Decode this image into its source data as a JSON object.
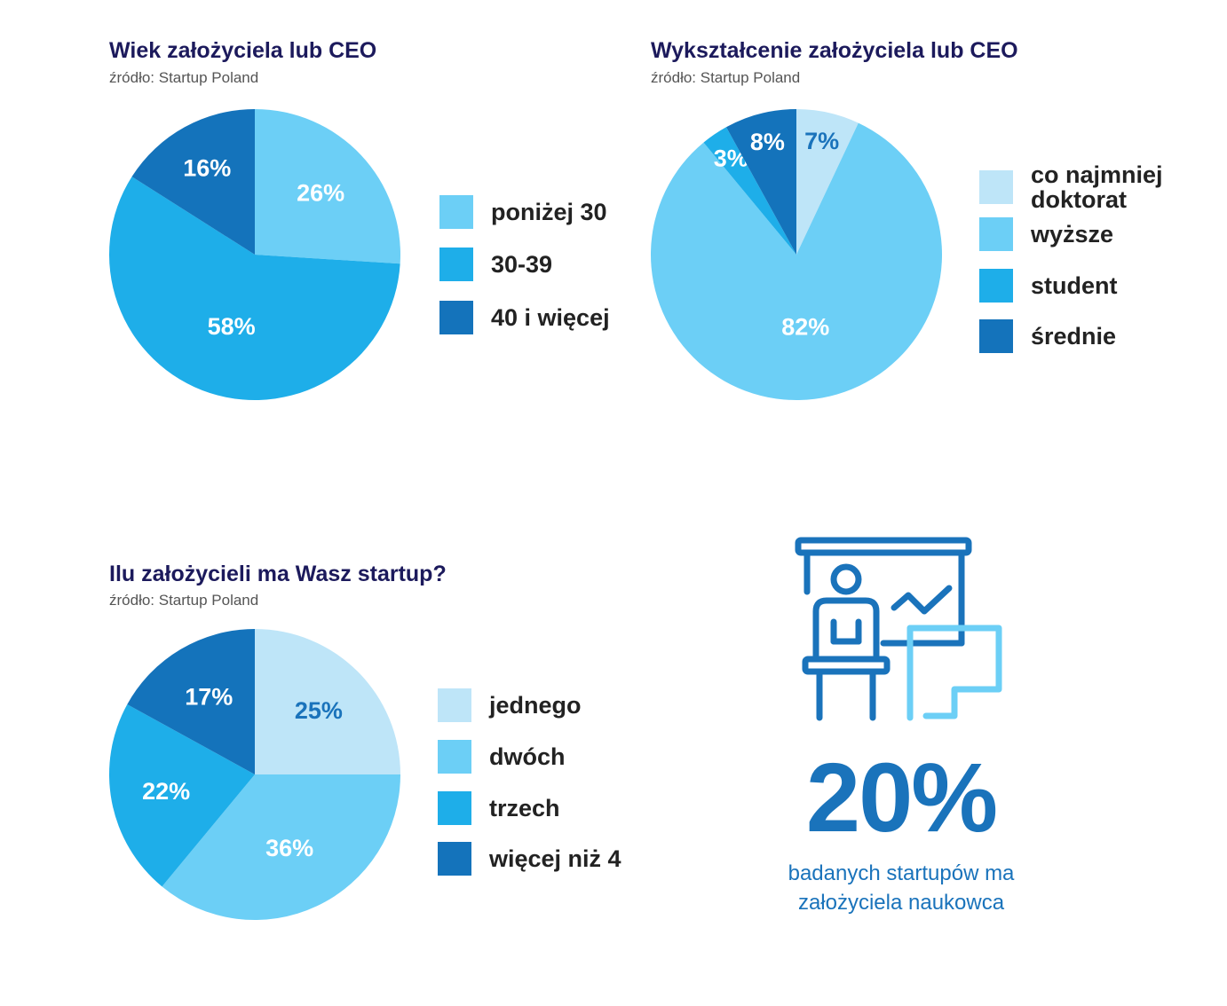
{
  "chart_data": [
    {
      "type": "pie",
      "title": "Wiek założyciela lub CEO",
      "source": "źródło: Startup Poland",
      "slices": [
        {
          "label": "poniżej 30",
          "value": 26,
          "display": "26%",
          "color": "#6ccff6",
          "text_color": "#ffffff"
        },
        {
          "label": "30-39",
          "value": 58,
          "display": "58%",
          "color": "#1eaee9",
          "text_color": "#ffffff"
        },
        {
          "label": "40 i więcej",
          "value": 16,
          "display": "16%",
          "color": "#1473bb",
          "text_color": "#ffffff"
        }
      ],
      "legend_position": "right"
    },
    {
      "type": "pie",
      "title": "Wykształcenie założyciela lub CEO",
      "source": "źródło: Startup Poland",
      "slices": [
        {
          "label": "co najmniej doktorat",
          "value": 7,
          "display": "7%",
          "color": "#bee5f8",
          "text_color": "#1a73bb"
        },
        {
          "label": "wyższe",
          "value": 82,
          "display": "82%",
          "color": "#6ccff6",
          "text_color": "#ffffff"
        },
        {
          "label": "student",
          "value": 3,
          "display": "3%",
          "color": "#1eaee9",
          "text_color": "#ffffff"
        },
        {
          "label": "średnie",
          "value": 8,
          "display": "8%",
          "color": "#1473bb",
          "text_color": "#ffffff"
        }
      ],
      "legend_position": "right"
    },
    {
      "type": "pie",
      "title": "Ilu założycieli ma Wasz startup?",
      "source": "źródło: Startup Poland",
      "slices": [
        {
          "label": "jednego",
          "value": 25,
          "display": "25%",
          "color": "#bee5f8",
          "text_color": "#1a73bb"
        },
        {
          "label": "dwóch",
          "value": 36,
          "display": "36%",
          "color": "#6ccff6",
          "text_color": "#ffffff"
        },
        {
          "label": "trzech",
          "value": 22,
          "display": "22%",
          "color": "#1eaee9",
          "text_color": "#ffffff"
        },
        {
          "label": "więcej niż 4",
          "value": 17,
          "display": "17%",
          "color": "#1473bb",
          "text_color": "#ffffff"
        }
      ],
      "legend_position": "right"
    }
  ],
  "stat": {
    "value": "20%",
    "caption_line1": "badanych startupów ma",
    "caption_line2": "założyciela naukowca",
    "icon": "presenter-at-board-icon",
    "color": "#1a73bb"
  }
}
